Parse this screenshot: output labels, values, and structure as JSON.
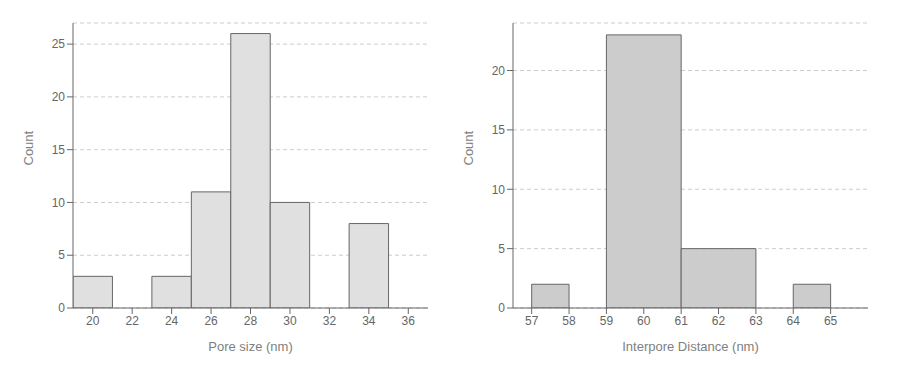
{
  "chart_data": [
    {
      "type": "bar",
      "x_label": "Pore size (nm)",
      "y_label": "Count",
      "x": [
        19,
        23,
        25,
        27,
        29,
        33
      ],
      "widths": [
        2,
        2,
        2,
        2,
        2,
        2
      ],
      "values": [
        3,
        3,
        11,
        26,
        10,
        8
      ],
      "color": "#e0e0e0",
      "xlim": [
        19,
        37
      ],
      "xticks": [
        20,
        22,
        24,
        26,
        28,
        30,
        32,
        34,
        36
      ],
      "ylim": [
        0,
        27
      ],
      "yticks": [
        0,
        5,
        10,
        15,
        20,
        25
      ],
      "grid": true
    },
    {
      "type": "bar",
      "x_label": "Interpore Distance (nm)",
      "y_label": "Count",
      "x": [
        57,
        59,
        61,
        64
      ],
      "widths": [
        1,
        2,
        2,
        1
      ],
      "values": [
        2,
        23,
        5,
        2
      ],
      "color": "#cccccc",
      "xlim": [
        56.5,
        66
      ],
      "xticks": [
        57,
        58,
        59,
        60,
        61,
        62,
        63,
        64,
        65
      ],
      "ylim": [
        0,
        24
      ],
      "yticks": [
        0,
        5,
        10,
        15,
        20
      ],
      "grid": true
    }
  ]
}
